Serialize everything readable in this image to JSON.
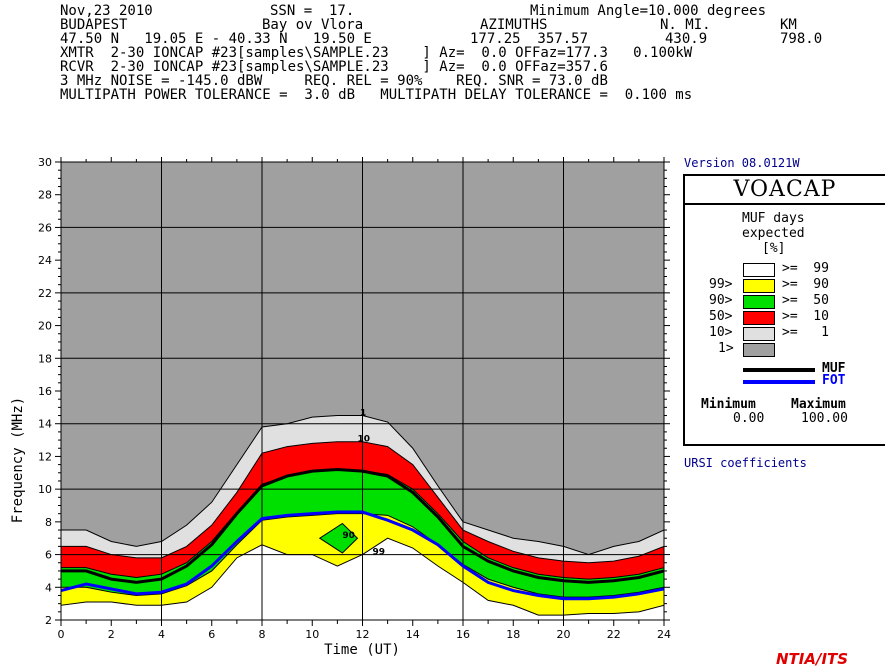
{
  "header": {
    "date": "Nov,23 2010",
    "ssn": "SSN =  17.",
    "min_angle": "Minimum Angle=10.000 degrees",
    "tx_site": "BUDAPEST",
    "rx_site": "Bay ov Vlora",
    "azimuths_label": "AZIMUTHS",
    "nmi_label": "N. MI.",
    "km_label": "KM",
    "coords": "47.50 N   19.05 E - 40.33 N   19.50 E",
    "azimuth_values": "177.25  357.57",
    "nmi_value": "430.9",
    "km_value": "798.0",
    "xmtr": "XMTR  2-30 IONCAP #23[samples\\SAMPLE.23    ] Az=  0.0 OFFaz=177.3   0.100kW",
    "rcvr": "RCVR  2-30 IONCAP #23[samples\\SAMPLE.23    ] Az=  0.0 OFFaz=357.6",
    "noise": "3 MHz NOISE = -145.0 dBW     REQ. REL = 90%    REQ. SNR = 73.0 dB",
    "multipath": "MULTIPATH POWER TOLERANCE =  3.0 dB   MULTIPATH DELAY TOLERANCE =  0.100 ms"
  },
  "version": "Version 08.0121W",
  "legend": {
    "title": "VOACAP",
    "heading_1": "MUF days",
    "heading_2": "expected",
    "heading_3": "[%]",
    "rows": [
      {
        "left": "",
        "right": ">=  99",
        "color": "#ffffff"
      },
      {
        "left": "99>",
        "right": ">=  90",
        "color": "#ffff00"
      },
      {
        "left": "90>",
        "right": ">=  50",
        "color": "#00e000"
      },
      {
        "left": "50>",
        "right": ">=  10",
        "color": "#ff0000"
      },
      {
        "left": "10>",
        "right": ">=   1",
        "color": "#e0e0e0"
      },
      {
        "left": "1>",
        "right": "",
        "color": "#a0a0a0"
      }
    ],
    "muf_label": "MUF",
    "fot_label": "FOT",
    "muf_color": "#000000",
    "fot_color": "#0000ff",
    "min_label": "Minimum",
    "max_label": "Maximum",
    "min_value": "0.00",
    "max_value": "100.00"
  },
  "ursi": "URSI coefficients",
  "credit": "NTIA/ITS",
  "chart_data": {
    "type": "area",
    "xlabel": "Time (UT)",
    "ylabel": "Frequency (MHz)",
    "xlim": [
      0,
      24
    ],
    "ylim": [
      2,
      30
    ],
    "x_ticks": [
      0,
      2,
      4,
      6,
      8,
      10,
      12,
      14,
      16,
      18,
      20,
      22,
      24
    ],
    "y_ticks": [
      2,
      4,
      6,
      8,
      10,
      12,
      14,
      16,
      18,
      20,
      22,
      24,
      26,
      28,
      30
    ],
    "x": [
      0,
      1,
      2,
      3,
      4,
      5,
      6,
      7,
      8,
      9,
      10,
      11,
      12,
      13,
      14,
      15,
      16,
      17,
      18,
      19,
      20,
      21,
      22,
      23,
      24
    ],
    "contour_labels": [
      {
        "text": "1",
        "x": 11.9,
        "y": 14.5
      },
      {
        "text": "10",
        "x": 11.8,
        "y": 12.9
      },
      {
        "text": "90",
        "x": 11.2,
        "y": 7.0
      },
      {
        "text": "99",
        "x": 12.4,
        "y": 6.0
      }
    ],
    "series": [
      {
        "name": "1",
        "color": "#e0e0e0",
        "values": [
          7.5,
          7.5,
          6.8,
          6.5,
          6.8,
          7.8,
          9.2,
          11.5,
          13.8,
          14.0,
          14.4,
          14.5,
          14.5,
          14.1,
          12.5,
          10.2,
          8.0,
          7.5,
          7.0,
          6.8,
          6.5,
          6.0,
          6.5,
          6.8,
          7.5
        ]
      },
      {
        "name": "10",
        "color": "#ff0000",
        "values": [
          6.5,
          6.5,
          6.0,
          5.8,
          5.8,
          6.5,
          7.8,
          9.8,
          12.2,
          12.6,
          12.8,
          12.9,
          12.9,
          12.6,
          11.5,
          9.5,
          7.5,
          6.8,
          6.2,
          5.8,
          5.6,
          5.5,
          5.6,
          5.9,
          6.5
        ]
      },
      {
        "name": "50",
        "color": "#00e000",
        "values": [
          5.2,
          5.2,
          4.8,
          4.6,
          4.8,
          5.5,
          6.8,
          8.6,
          10.3,
          10.8,
          11.1,
          11.2,
          11.1,
          10.9,
          10.0,
          8.5,
          6.8,
          5.8,
          5.2,
          4.8,
          4.6,
          4.5,
          4.6,
          4.8,
          5.2
        ]
      },
      {
        "name": "90",
        "color": "#ffff00",
        "values": [
          4.0,
          4.0,
          3.7,
          3.5,
          3.6,
          4.1,
          5.0,
          6.6,
          8.1,
          8.3,
          8.4,
          8.5,
          8.5,
          8.4,
          7.7,
          6.6,
          5.4,
          4.5,
          4.0,
          3.6,
          3.4,
          3.4,
          3.5,
          3.7,
          4.0
        ]
      },
      {
        "name": "99",
        "color": "#ffffff",
        "values": [
          2.9,
          3.1,
          3.1,
          2.9,
          2.9,
          3.1,
          4.0,
          5.8,
          6.6,
          6.0,
          6.0,
          5.3,
          6.0,
          7.0,
          6.4,
          5.3,
          4.3,
          3.2,
          2.9,
          2.3,
          2.3,
          2.4,
          2.4,
          2.5,
          2.9
        ]
      }
    ],
    "muf": [
      5.0,
      5.0,
      4.5,
      4.3,
      4.5,
      5.3,
      6.6,
      8.5,
      10.2,
      10.8,
      11.1,
      11.2,
      11.1,
      10.8,
      9.8,
      8.3,
      6.5,
      5.6,
      5.0,
      4.6,
      4.4,
      4.3,
      4.4,
      4.6,
      5.0
    ],
    "fot": [
      3.8,
      4.2,
      3.9,
      3.6,
      3.7,
      4.2,
      5.3,
      6.8,
      8.2,
      8.4,
      8.5,
      8.6,
      8.6,
      8.1,
      7.5,
      6.6,
      5.3,
      4.3,
      3.8,
      3.5,
      3.3,
      3.3,
      3.4,
      3.6,
      3.9
    ],
    "islands": [
      {
        "color": "#00e000",
        "points": [
          [
            10.3,
            7.0
          ],
          [
            11.2,
            7.9
          ],
          [
            11.8,
            7.0
          ],
          [
            11.2,
            6.1
          ]
        ]
      }
    ],
    "background_color": "#a0a0a0"
  }
}
